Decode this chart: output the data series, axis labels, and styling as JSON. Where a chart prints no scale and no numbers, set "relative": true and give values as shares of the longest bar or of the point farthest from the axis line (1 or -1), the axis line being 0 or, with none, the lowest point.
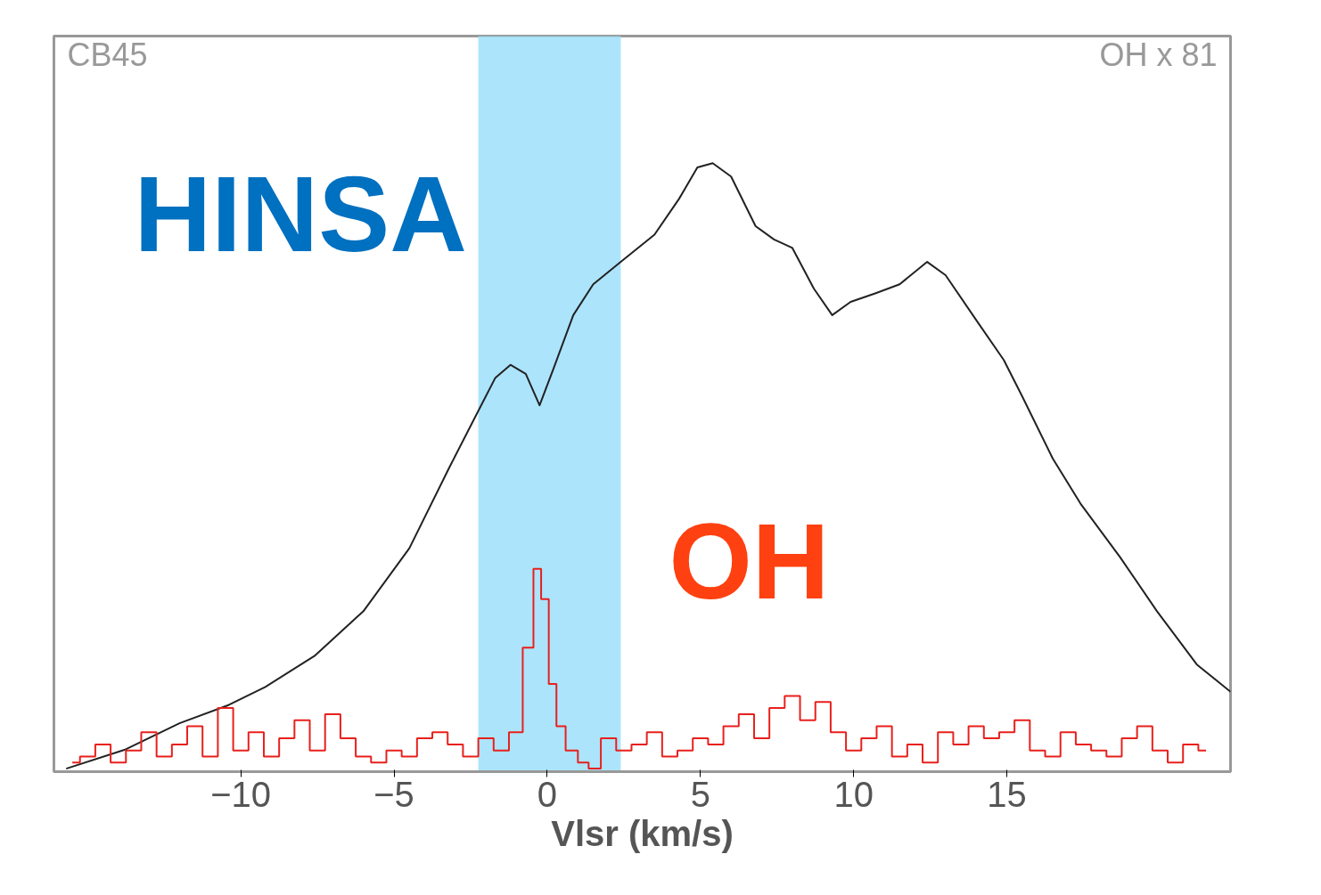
{
  "chart_data": {
    "type": "line",
    "relative": true,
    "xlabel": "Vlsr (km/s)",
    "xlim": [
      -16.1,
      22.3
    ],
    "xticks": [
      -10,
      -5,
      0,
      5,
      10,
      15
    ],
    "tick_labels": "x",
    "grid": false,
    "annotations": [
      "CB45",
      "OH x 81",
      "HINSA",
      "OH"
    ],
    "bands": [
      {
        "axis": "x",
        "from": -2.25,
        "to": 2.4,
        "color": "#9edffc"
      }
    ],
    "series": [
      {
        "color": "#222222",
        "x": [
          -15.7,
          -13.8,
          -12.0,
          -10.4,
          -9.2,
          -7.6,
          -6.0,
          -4.5,
          -3.2,
          -2.3,
          -1.7,
          -1.2,
          -0.7,
          -0.25,
          0.2,
          0.85,
          1.5,
          2.4,
          3.5,
          4.3,
          4.9,
          5.4,
          6.0,
          6.8,
          7.4,
          8.0,
          8.7,
          9.3,
          9.9,
          10.7,
          11.5,
          12.4,
          13.0,
          14.0,
          14.9,
          15.5,
          16.5,
          17.4,
          18.7,
          19.9,
          21.2,
          22.3
        ],
        "values": [
          0,
          0.031,
          0.075,
          0.105,
          0.135,
          0.186,
          0.26,
          0.364,
          0.497,
          0.586,
          0.645,
          0.667,
          0.652,
          0.6,
          0.66,
          0.749,
          0.8,
          0.837,
          0.882,
          0.941,
          0.993,
          1.0,
          0.978,
          0.896,
          0.874,
          0.86,
          0.793,
          0.749,
          0.771,
          0.785,
          0.8,
          0.837,
          0.815,
          0.741,
          0.675,
          0.615,
          0.512,
          0.438,
          0.349,
          0.26,
          0.172,
          0.127
        ]
      },
      {
        "type": "step",
        "color": "#e8201c",
        "x": [
          -15.5,
          -15.0,
          -14.5,
          -14.0,
          -13.5,
          -13.0,
          -12.5,
          -12.0,
          -11.5,
          -11.0,
          -10.5,
          -10.0,
          -9.5,
          -9.0,
          -8.5,
          -8.0,
          -7.5,
          -7.0,
          -6.5,
          -6.0,
          -5.5,
          -5.0,
          -4.5,
          -4.0,
          -3.5,
          -3.0,
          -2.5,
          -2.0,
          -1.5,
          -1.0,
          -0.6,
          -0.3,
          -0.1,
          0.2,
          0.4,
          0.8,
          1.2,
          1.5,
          2.0,
          2.5,
          3.0,
          3.5,
          4.0,
          4.5,
          5.0,
          5.5,
          6.0,
          6.5,
          7.0,
          7.5,
          8.0,
          8.5,
          9.0,
          9.5,
          10.0,
          10.5,
          11.0,
          11.5,
          12.0,
          12.5,
          13.0,
          13.5,
          14.0,
          14.5,
          15.0,
          15.5,
          16.0,
          16.5,
          17.0,
          17.5,
          18.0,
          18.5,
          19.0,
          19.5,
          20.0,
          20.5,
          21.0,
          21.5
        ],
        "values": [
          0.01,
          0.02,
          0.04,
          0.01,
          0.03,
          0.06,
          0.02,
          0.04,
          0.07,
          0.02,
          0.1,
          0.03,
          0.06,
          0.02,
          0.05,
          0.08,
          0.03,
          0.09,
          0.05,
          0.02,
          0.01,
          0.03,
          0.02,
          0.05,
          0.06,
          0.04,
          0.02,
          0.05,
          0.03,
          0.06,
          0.2,
          0.33,
          0.28,
          0.14,
          0.07,
          0.03,
          0.01,
          0.0,
          0.05,
          0.03,
          0.04,
          0.06,
          0.02,
          0.03,
          0.05,
          0.04,
          0.07,
          0.09,
          0.05,
          0.1,
          0.12,
          0.08,
          0.11,
          0.06,
          0.03,
          0.05,
          0.07,
          0.02,
          0.04,
          0.01,
          0.06,
          0.04,
          0.07,
          0.05,
          0.06,
          0.08,
          0.03,
          0.02,
          0.06,
          0.04,
          0.03,
          0.02,
          0.05,
          0.07,
          0.03,
          0.01,
          0.04,
          0.03
        ]
      }
    ]
  }
}
